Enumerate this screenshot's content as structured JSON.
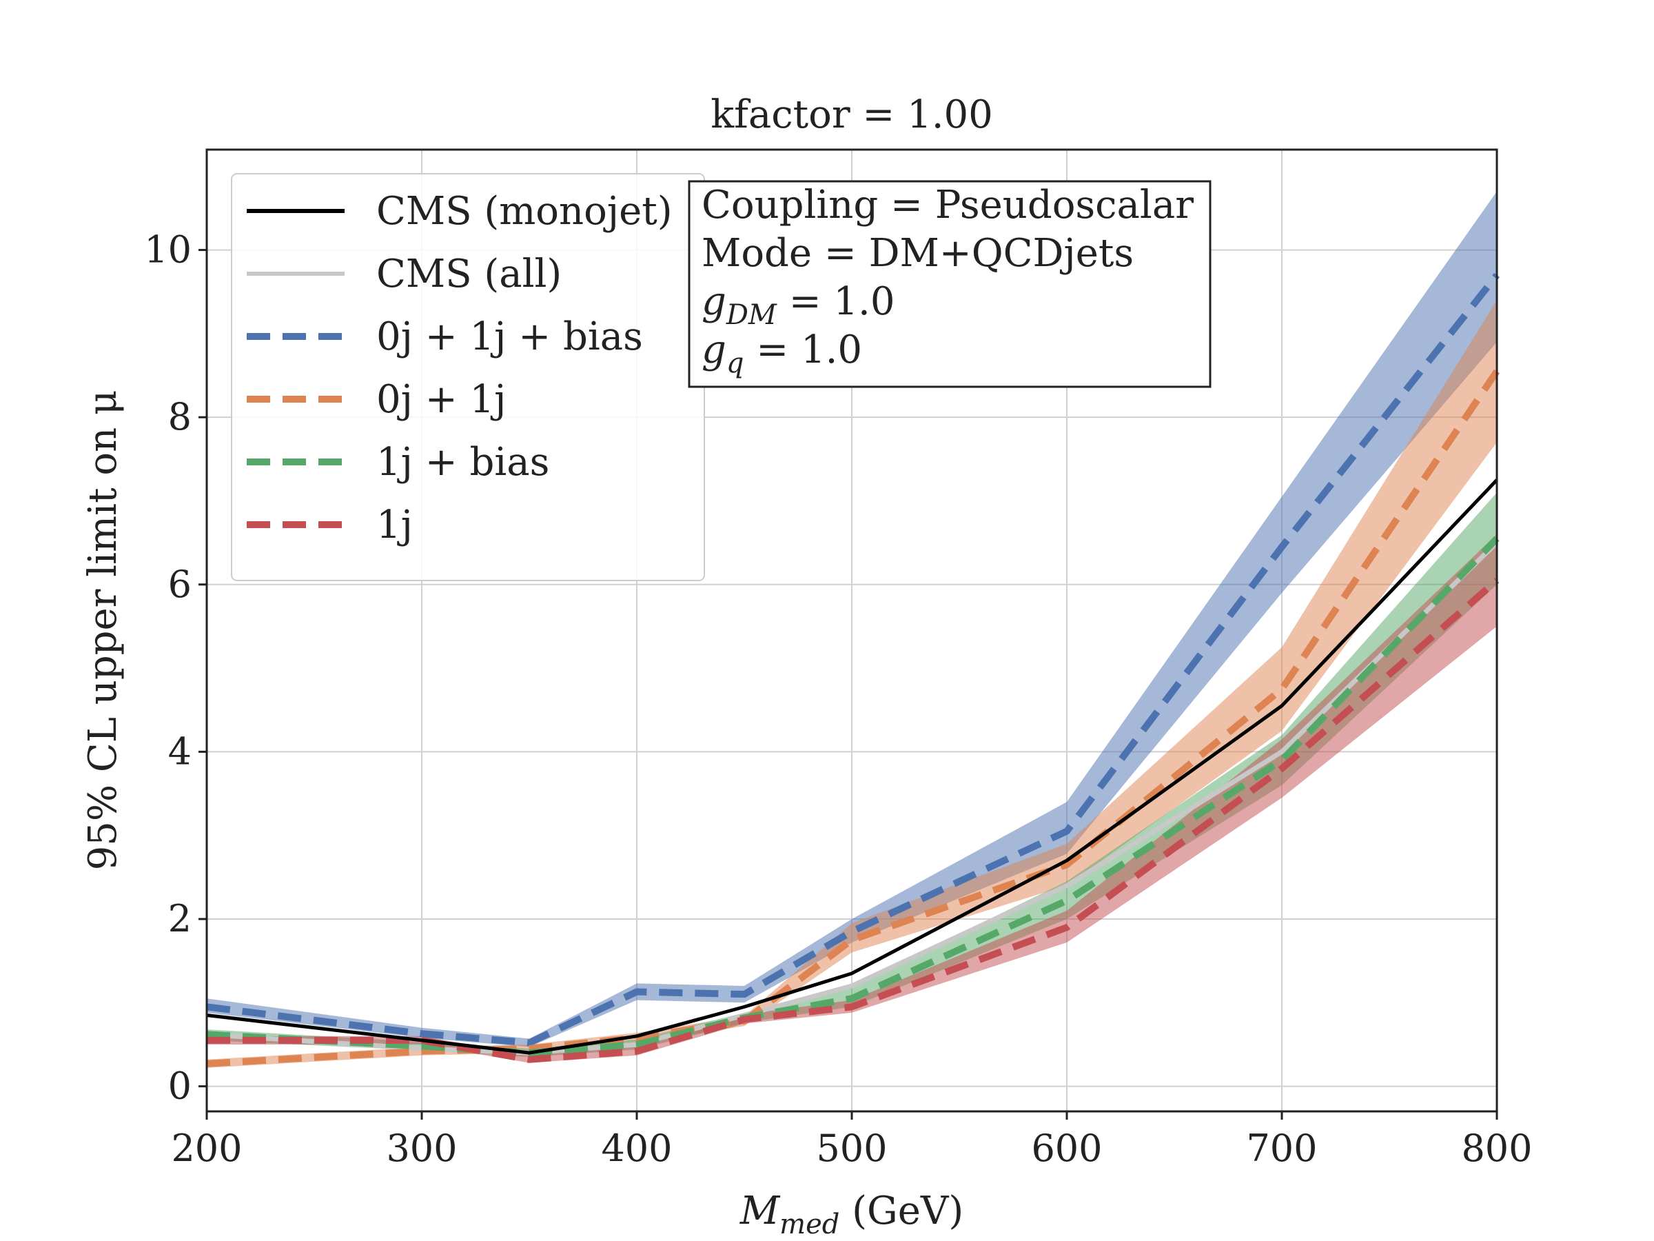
{
  "chart_data": {
    "type": "line",
    "title": "kfactor = 1.00",
    "xlabel": "M_med (GeV)",
    "xlabel_parts": {
      "main": "M",
      "sub": "med",
      "unit": " (GeV)"
    },
    "ylabel": "95% CL upper limit on μ",
    "xlim": [
      200,
      800
    ],
    "ylim": [
      -0.3,
      11.2
    ],
    "xticks": [
      200,
      300,
      400,
      500,
      600,
      700,
      800
    ],
    "xtick_labels": [
      "200",
      "300",
      "400",
      "500",
      "600",
      "700",
      "800"
    ],
    "yticks": [
      0,
      2,
      4,
      6,
      8,
      10
    ],
    "ytick_labels": [
      "0",
      "2",
      "4",
      "6",
      "8",
      "10"
    ],
    "grid": true,
    "legend_position": "top-left",
    "x": [
      200,
      300,
      350,
      400,
      450,
      500,
      600,
      700,
      800
    ],
    "series": [
      {
        "name": "CMS (monojet)",
        "color": "#000000",
        "style": "solid",
        "values": [
          0.85,
          0.55,
          0.4,
          0.6,
          0.95,
          1.35,
          2.7,
          4.55,
          7.25
        ]
      },
      {
        "name": "CMS (all)",
        "color": "#c8c8c8",
        "style": "solid",
        "values": [
          0.62,
          0.45,
          0.4,
          0.5,
          0.85,
          1.2,
          2.4,
          4.0,
          6.5
        ]
      },
      {
        "name": "0j + 1j + bias",
        "color": "#4c72b0",
        "style": "dashed",
        "values": [
          0.95,
          0.63,
          0.52,
          1.13,
          1.1,
          1.85,
          3.05,
          6.45,
          9.7
        ],
        "band_low": [
          0.88,
          0.58,
          0.47,
          1.03,
          1.0,
          1.72,
          2.78,
          5.9,
          8.9
        ],
        "band_high": [
          1.05,
          0.7,
          0.57,
          1.23,
          1.2,
          2.0,
          3.4,
          7.05,
          10.7
        ]
      },
      {
        "name": "0j + 1j",
        "color": "#dd8452",
        "style": "dashed",
        "values": [
          0.27,
          0.42,
          0.45,
          0.58,
          0.78,
          1.75,
          2.65,
          4.75,
          8.55
        ],
        "band_low": [
          0.22,
          0.37,
          0.4,
          0.52,
          0.72,
          1.6,
          2.4,
          4.25,
          7.7
        ],
        "band_high": [
          0.32,
          0.47,
          0.5,
          0.64,
          0.84,
          1.95,
          2.9,
          5.25,
          9.4
        ]
      },
      {
        "name": "1j + bias",
        "color": "#55a868",
        "style": "dashed",
        "values": [
          0.62,
          0.48,
          0.4,
          0.5,
          0.82,
          1.05,
          2.22,
          3.9,
          6.55
        ],
        "band_low": [
          0.55,
          0.43,
          0.35,
          0.44,
          0.76,
          0.95,
          2.0,
          3.6,
          6.0
        ],
        "band_high": [
          0.68,
          0.53,
          0.45,
          0.56,
          0.88,
          1.2,
          2.45,
          4.2,
          7.1
        ]
      },
      {
        "name": "1j",
        "color": "#c44e52",
        "style": "dashed",
        "values": [
          0.55,
          0.55,
          0.32,
          0.42,
          0.8,
          0.95,
          1.9,
          3.8,
          6.05
        ],
        "band_low": [
          0.5,
          0.5,
          0.28,
          0.37,
          0.75,
          0.88,
          1.72,
          3.45,
          5.5
        ],
        "band_high": [
          0.6,
          0.6,
          0.37,
          0.48,
          0.86,
          1.03,
          2.1,
          4.15,
          6.6
        ]
      }
    ],
    "legend_labels": [
      {
        "text": "CMS (monojet)",
        "color": "#000000",
        "style": "solid"
      },
      {
        "text": "CMS (all)",
        "color": "#c8c8c8",
        "style": "solid"
      },
      {
        "text": "0j + 1j + bias",
        "color": "#4c72b0",
        "style": "dashed"
      },
      {
        "text": "0j + 1j",
        "color": "#dd8452",
        "style": "dashed"
      },
      {
        "text": "1j + bias",
        "color": "#55a868",
        "style": "dashed"
      },
      {
        "text": "1j",
        "color": "#c44e52",
        "style": "dashed"
      }
    ],
    "annotation_lines": [
      "Coupling = Pseudoscalar",
      "Mode = DM+QCDjets",
      "g_DM = 1.0",
      "g_q = 1.0"
    ]
  }
}
